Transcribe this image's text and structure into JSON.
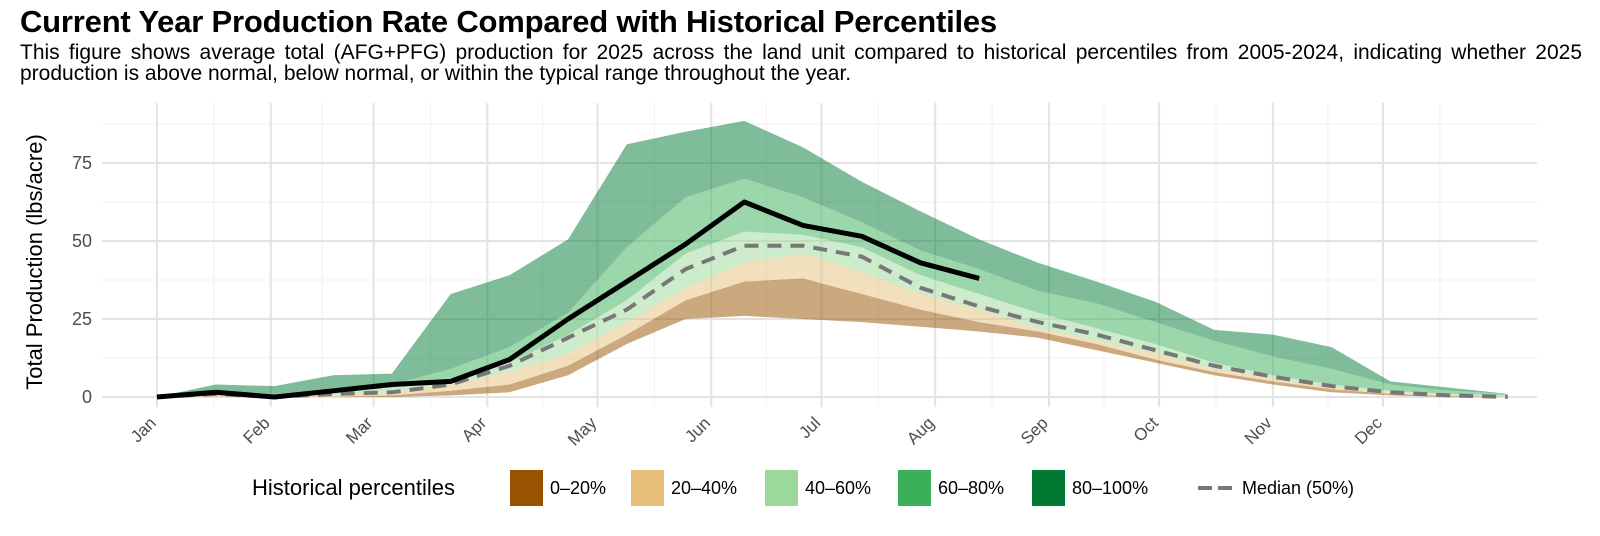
{
  "header": {
    "title": "Current Year Production Rate Compared with Historical Percentiles",
    "subtitle": "This figure shows average total (AFG+PFG) production for 2025 across the land unit compared to historical percentiles from 2005-2024, indicating whether 2025 production is above normal, below normal, or within the typical range throughout the year."
  },
  "chart_data": {
    "type": "area",
    "title": "Current Year Production Rate Compared with Historical Percentiles",
    "xlabel": "",
    "ylabel": "Total Production (lbs/acre)",
    "ylim": [
      0,
      92
    ],
    "yticks": [
      0,
      25,
      50,
      75
    ],
    "ytick_labels": [
      "0",
      "25",
      "50",
      "75"
    ],
    "x_unit": "day of year",
    "xlim": [
      1,
      380
    ],
    "xticks_doy": [
      1,
      32,
      60,
      91,
      121,
      152,
      182,
      213,
      244,
      274,
      305,
      335
    ],
    "xtick_labels": [
      "Jan",
      "Feb",
      "Mar",
      "Apr",
      "May",
      "Jun",
      "Jul",
      "Aug",
      "Sep",
      "Oct",
      "Nov",
      "Dec"
    ],
    "grid": true,
    "legend_position": "bottom",
    "x_doy": [
      1,
      17,
      33,
      49,
      65,
      81,
      97,
      113,
      129,
      145,
      161,
      177,
      193,
      209,
      225,
      241,
      257,
      273,
      289,
      305,
      321,
      337,
      353,
      369
    ],
    "percentiles": {
      "p0": [
        0,
        0,
        0,
        0,
        0,
        0.5,
        1.5,
        7,
        17,
        25,
        26,
        25,
        24,
        22.5,
        21,
        19,
        15,
        11,
        7,
        4,
        1.5,
        0.5,
        0,
        0
      ],
      "p20": [
        0,
        0,
        0,
        0,
        0.5,
        2,
        4,
        10,
        20,
        31,
        37,
        38,
        33,
        28,
        24,
        21,
        17,
        12,
        8,
        5,
        2.5,
        1,
        0.3,
        0
      ],
      "p40": [
        0,
        0.5,
        0,
        0.5,
        1.5,
        4,
        8,
        14,
        24,
        35,
        43,
        46,
        40,
        33,
        28,
        22,
        18,
        14,
        9,
        6,
        3,
        1.5,
        0.5,
        0
      ],
      "p60": [
        0,
        1.5,
        0.5,
        1.5,
        3,
        6,
        11,
        20,
        31,
        46,
        53,
        52,
        48,
        39,
        33,
        27,
        22,
        17,
        11,
        7,
        4,
        2,
        1,
        0.5
      ],
      "p80": [
        0,
        2,
        1,
        2.5,
        4,
        9,
        16,
        27,
        48,
        64,
        70,
        64,
        56,
        47,
        41,
        34,
        30,
        24,
        18,
        13,
        9,
        4,
        2,
        1
      ],
      "p100": [
        0,
        4,
        3.5,
        7,
        7.5,
        33,
        39,
        50.5,
        81,
        85,
        88.5,
        80,
        69,
        59.5,
        50.5,
        43,
        37,
        30.5,
        21.5,
        20,
        16,
        5,
        3,
        1
      ]
    },
    "series": [
      {
        "name": "Median (50%)",
        "style": "dashed",
        "color": "#777777",
        "values": [
          0,
          1,
          0,
          1,
          1.5,
          4,
          10,
          19,
          28,
          41,
          48.5,
          48.5,
          45,
          35,
          29,
          24,
          20,
          15,
          10,
          6.5,
          3.5,
          1.5,
          0.5,
          0
        ]
      },
      {
        "name": "2025",
        "style": "solid",
        "color": "#000000",
        "values": [
          0,
          1.5,
          0,
          2,
          4,
          5,
          12,
          25,
          37,
          49,
          62.5,
          55,
          51.5,
          43,
          38
        ]
      }
    ],
    "bands": [
      {
        "name": "0–20%",
        "from": "p0",
        "to": "p20",
        "color": "#995200"
      },
      {
        "name": "20–40%",
        "from": "p20",
        "to": "p40",
        "color": "#e6c078"
      },
      {
        "name": "40–60%",
        "from": "p40",
        "to": "p60",
        "color": "#9ad99a"
      },
      {
        "name": "60–80%",
        "from": "p60",
        "to": "p80",
        "color": "#3ab05a"
      },
      {
        "name": "80–100%",
        "from": "p80",
        "to": "p100",
        "color": "#007a33"
      }
    ],
    "legend": {
      "title": "Historical percentiles",
      "items": [
        {
          "label": "0–20%",
          "color": "#995200"
        },
        {
          "label": "20–40%",
          "color": "#e6c078"
        },
        {
          "label": "40–60%",
          "color": "#9ad99a"
        },
        {
          "label": "60–80%",
          "color": "#3ab05a"
        },
        {
          "label": "80–100%",
          "color": "#007a33"
        }
      ],
      "median_label": "Median (50%)"
    }
  }
}
